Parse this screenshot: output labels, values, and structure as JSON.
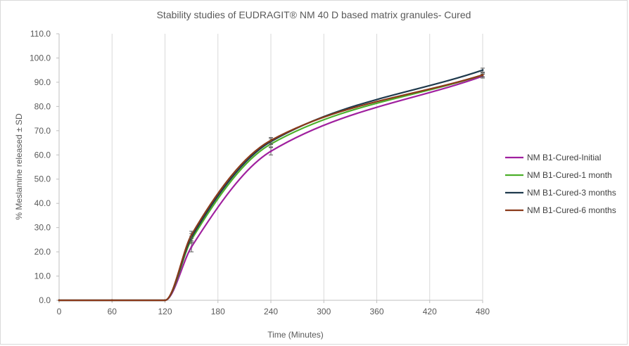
{
  "chart_data": {
    "type": "line",
    "title": "Stability studies of EUDRAGIT® NM 40 D based matrix granules- Cured",
    "xlabel": "Time (Minutes)",
    "ylabel": "% Meslamine released ± SD",
    "xlim": [
      0,
      480
    ],
    "ylim": [
      0,
      110
    ],
    "x_ticks": [
      0,
      60,
      120,
      180,
      240,
      300,
      360,
      420,
      480
    ],
    "y_ticks": [
      0,
      10,
      20,
      30,
      40,
      50,
      60,
      70,
      80,
      90,
      100,
      110
    ],
    "x_tick_labels": [
      "0",
      "60",
      "120",
      "180",
      "240",
      "300",
      "360",
      "420",
      "480"
    ],
    "y_tick_labels": [
      "0.0",
      "10.0",
      "20.0",
      "30.0",
      "40.0",
      "50.0",
      "60.0",
      "70.0",
      "80.0",
      "90.0",
      "100.0",
      "110.0"
    ],
    "grid": "vertical",
    "legend_position": "right",
    "x": [
      0,
      60,
      120,
      150,
      240,
      480
    ],
    "series": [
      {
        "name": "NM B1-Cured-Initial",
        "color": "#a0209f",
        "values": [
          0,
          0,
          0,
          22,
          61.5,
          92.5
        ],
        "errors": [
          0,
          0,
          0,
          2,
          1.5,
          0.8
        ]
      },
      {
        "name": "NM B1-Cured-1 month",
        "color": "#4caf2a",
        "values": [
          0,
          0,
          0,
          25,
          64.5,
          93
        ],
        "errors": [
          0,
          0,
          0,
          1.5,
          1.2,
          0.8
        ]
      },
      {
        "name": "NM B1-Cured-3 months",
        "color": "#1f3a4d",
        "values": [
          0,
          0,
          0,
          26,
          65.5,
          95
        ],
        "errors": [
          0,
          0,
          0,
          1.5,
          1.2,
          0.8
        ]
      },
      {
        "name": "NM B1-Cured-6 months",
        "color": "#8a3a1a",
        "values": [
          0,
          0,
          0,
          27,
          66,
          93
        ],
        "errors": [
          0,
          0,
          0,
          1.5,
          1.2,
          0.8
        ]
      }
    ]
  }
}
